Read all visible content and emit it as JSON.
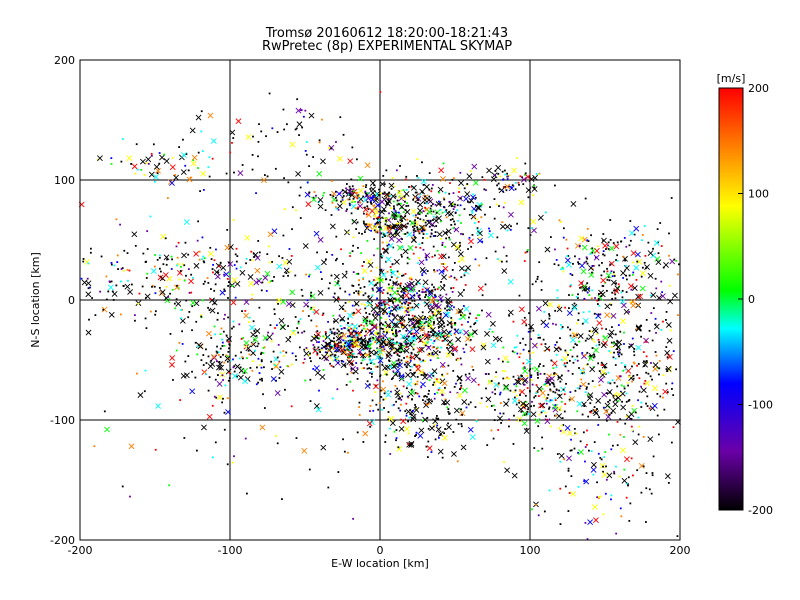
{
  "chart_data": {
    "type": "scatter",
    "title": "Tromsø 20160612 18:20:00-18:21:43",
    "subtitle": "RwPretec (8p) EXPERIMENTAL SKYMAP",
    "xlabel": "E-W location [km]",
    "ylabel": "N-S location [km]",
    "xlim": [
      -200,
      200
    ],
    "ylim": [
      -200,
      200
    ],
    "xticks": [
      "-200",
      "-100",
      "0",
      "100",
      "200"
    ],
    "yticks": [
      "-200",
      "-100",
      "0",
      "100",
      "200"
    ],
    "grid": true,
    "colorbar": {
      "label": "[m/s]",
      "range": [
        -200,
        200
      ],
      "ticks": [
        "200",
        "100",
        "0",
        "-100",
        "-200"
      ],
      "colormap": [
        "#000000",
        "#6a00a8",
        "#0000ff",
        "#00ffff",
        "#00ff00",
        "#ffff00",
        "#ff8000",
        "#ff0000"
      ]
    },
    "markers": [
      "dot",
      "x"
    ],
    "clusters": [
      {
        "x": 15,
        "y": -20,
        "sx": 28,
        "sy": 30,
        "n": 1100
      },
      {
        "x": 30,
        "y": 70,
        "sx": 28,
        "sy": 18,
        "n": 420
      },
      {
        "x": -12,
        "y": 85,
        "sx": 18,
        "sy": 6,
        "n": 140
      },
      {
        "x": 10,
        "y": 62,
        "sx": 12,
        "sy": 4,
        "n": 90
      },
      {
        "x": -25,
        "y": -38,
        "sx": 14,
        "sy": 8,
        "n": 260
      },
      {
        "x": 150,
        "y": -55,
        "sx": 30,
        "sy": 30,
        "n": 520
      },
      {
        "x": 150,
        "y": 25,
        "sx": 28,
        "sy": 22,
        "n": 260
      },
      {
        "x": -95,
        "y": -45,
        "sx": 20,
        "sy": 18,
        "n": 220
      },
      {
        "x": -120,
        "y": 20,
        "sx": 50,
        "sy": 20,
        "n": 330
      },
      {
        "x": -150,
        "y": 110,
        "sx": 18,
        "sy": 10,
        "n": 60
      },
      {
        "x": 90,
        "y": 100,
        "sx": 12,
        "sy": 7,
        "n": 60
      },
      {
        "x": 30,
        "y": -90,
        "sx": 20,
        "sy": 18,
        "n": 180
      },
      {
        "x": 140,
        "y": -140,
        "sx": 30,
        "sy": 30,
        "n": 140
      },
      {
        "x": -60,
        "y": 130,
        "sx": 30,
        "sy": 20,
        "n": 80
      },
      {
        "x": -100,
        "y": -110,
        "sx": 60,
        "sy": 40,
        "n": 60
      },
      {
        "x": 100,
        "y": -75,
        "sx": 18,
        "sy": 18,
        "n": 160
      }
    ]
  }
}
